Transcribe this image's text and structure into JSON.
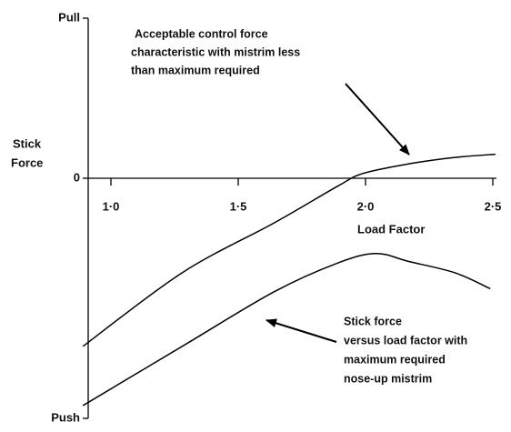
{
  "chart_data": {
    "type": "line",
    "y_label": [
      "Stick",
      "Force"
    ],
    "x_label": "Load Factor",
    "xlim": [
      0.9,
      2.55
    ],
    "xticks": [
      {
        "value": 1.0,
        "label": "1·0"
      },
      {
        "value": 1.5,
        "label": "1·5"
      },
      {
        "value": 2.0,
        "label": "2·0"
      },
      {
        "value": 2.5,
        "label": "2·5"
      }
    ],
    "ylim": [
      -1.5,
      1
    ],
    "yticks": [
      {
        "value": 1,
        "label": "Pull"
      },
      0,
      {
        "value": -1.5,
        "label": "Push"
      }
    ],
    "series": [
      {
        "color": "#000000",
        "x": [
          0.89,
          1.28,
          1.64,
          1.89,
          1.99,
          2.17,
          2.35,
          2.51
        ],
        "values": [
          -1.05,
          -0.59,
          -0.28,
          -0.05,
          0.03,
          0.09,
          0.13,
          0.15
        ]
      },
      {
        "color": "#000000",
        "x": [
          0.89,
          1.28,
          1.64,
          1.89,
          2.04,
          2.17,
          2.35,
          2.49
        ],
        "values": [
          -1.42,
          -1.05,
          -0.71,
          -0.53,
          -0.47,
          -0.52,
          -0.59,
          -0.69
        ]
      }
    ],
    "annotations": [
      [
        "Acceptable control force",
        "characteristic with mistrim less",
        "than maximum required"
      ],
      [
        "Stick force",
        "versus load factor with",
        "maximum required",
        "nose-up mistrim"
      ]
    ]
  }
}
